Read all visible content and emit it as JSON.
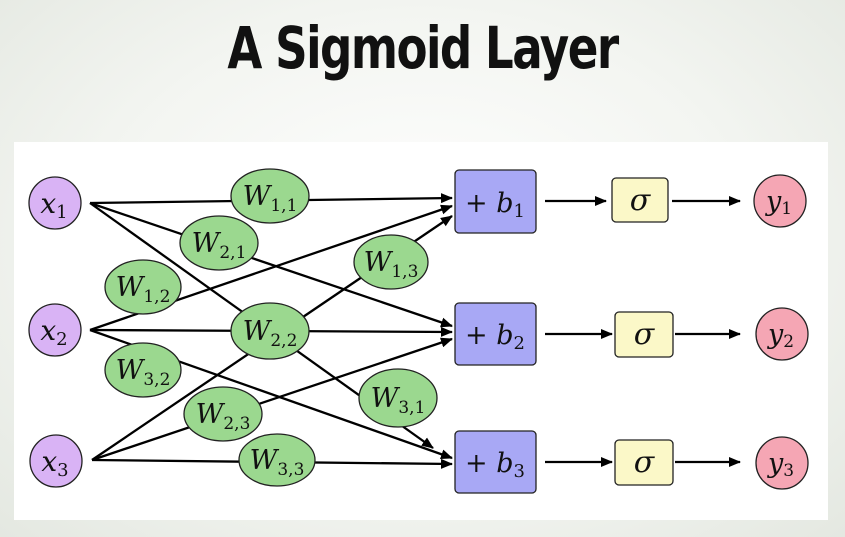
{
  "title": "A Sigmoid Layer",
  "inputs": [
    {
      "var": "x",
      "sub": "1"
    },
    {
      "var": "x",
      "sub": "2"
    },
    {
      "var": "x",
      "sub": "3"
    }
  ],
  "weights": [
    {
      "var": "W",
      "sub": "1,1"
    },
    {
      "var": "W",
      "sub": "2,1"
    },
    {
      "var": "W",
      "sub": "1,2"
    },
    {
      "var": "W",
      "sub": "1,3"
    },
    {
      "var": "W",
      "sub": "2,2"
    },
    {
      "var": "W",
      "sub": "3,2"
    },
    {
      "var": "W",
      "sub": "3,1"
    },
    {
      "var": "W",
      "sub": "2,3"
    },
    {
      "var": "W",
      "sub": "3,3"
    }
  ],
  "bias_nodes": [
    {
      "prefix": "+ ",
      "var": "b",
      "sub": "1"
    },
    {
      "prefix": "+ ",
      "var": "b",
      "sub": "2"
    },
    {
      "prefix": "+ ",
      "var": "b",
      "sub": "3"
    }
  ],
  "activations": [
    {
      "symbol": "σ"
    },
    {
      "symbol": "σ"
    },
    {
      "symbol": "σ"
    }
  ],
  "outputs": [
    {
      "var": "y",
      "sub": "1"
    },
    {
      "var": "y",
      "sub": "2"
    },
    {
      "var": "y",
      "sub": "3"
    }
  ],
  "colors": {
    "input_fill": "#d9b3f5",
    "weight_fill": "#9bd88f",
    "bias_fill": "#a8a8f5",
    "sigma_fill": "#fbf8c8",
    "output_fill": "#f5a6b4"
  }
}
